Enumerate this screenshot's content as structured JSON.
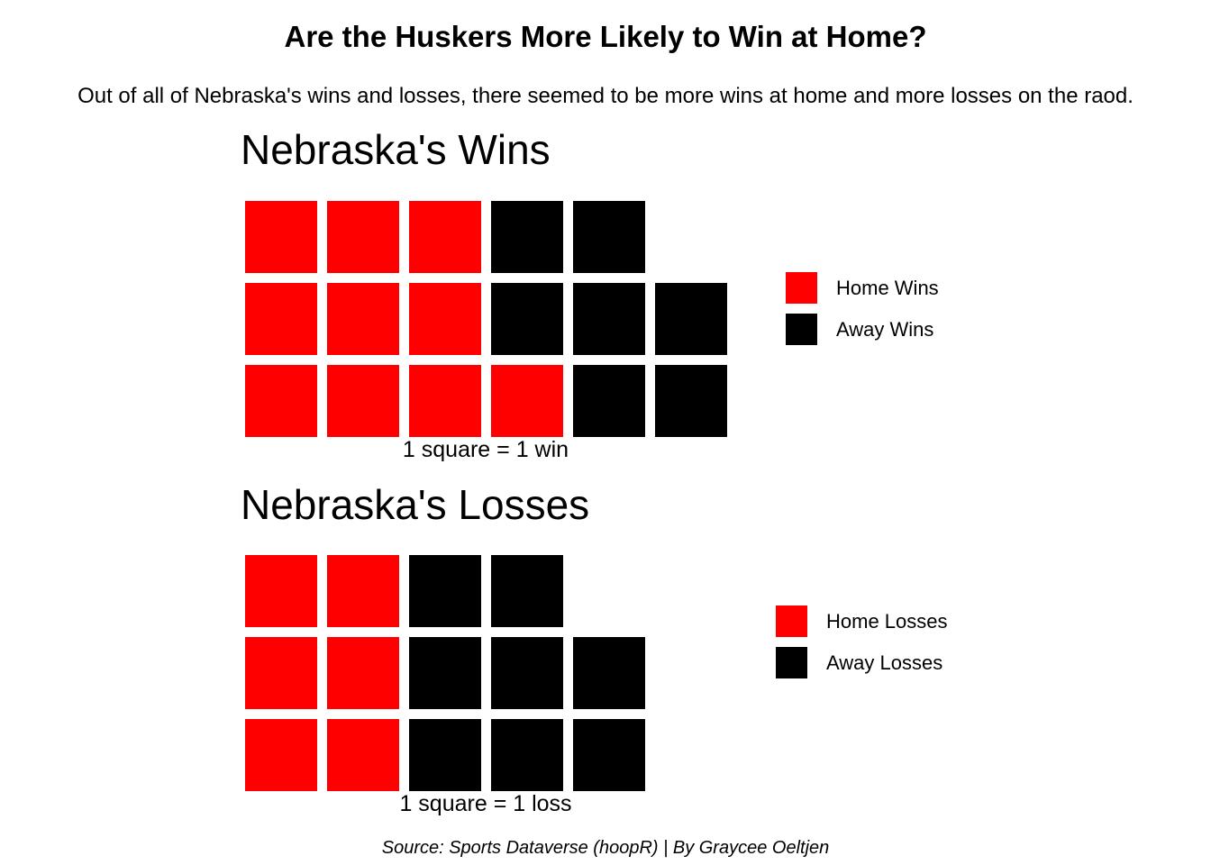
{
  "title": "Are the Huskers More Likely to Win at Home?",
  "subtitle": "Out of all of Nebraska's wins and losses, there seemed to be more wins at home and more losses on the raod.",
  "source": "Source: Sports Dataverse (hoopR) | By Graycee Oeltjen",
  "colors": {
    "home": "#ff0000",
    "away": "#000000"
  },
  "chart_data": [
    {
      "type": "waffle",
      "title": "Nebraska's Wins",
      "caption": "1 square = 1 win",
      "rows": 3,
      "fill_order": "column-major, bottom to top",
      "series": [
        {
          "name": "Home Wins",
          "value": 10,
          "color": "#ff0000"
        },
        {
          "name": "Away Wins",
          "value": 7,
          "color": "#000000"
        }
      ]
    },
    {
      "type": "waffle",
      "title": "Nebraska's Losses",
      "caption": "1 square = 1 loss",
      "rows": 3,
      "fill_order": "column-major, bottom to top",
      "series": [
        {
          "name": "Home Losses",
          "value": 6,
          "color": "#ff0000"
        },
        {
          "name": "Away Losses",
          "value": 8,
          "color": "#000000"
        }
      ]
    }
  ]
}
